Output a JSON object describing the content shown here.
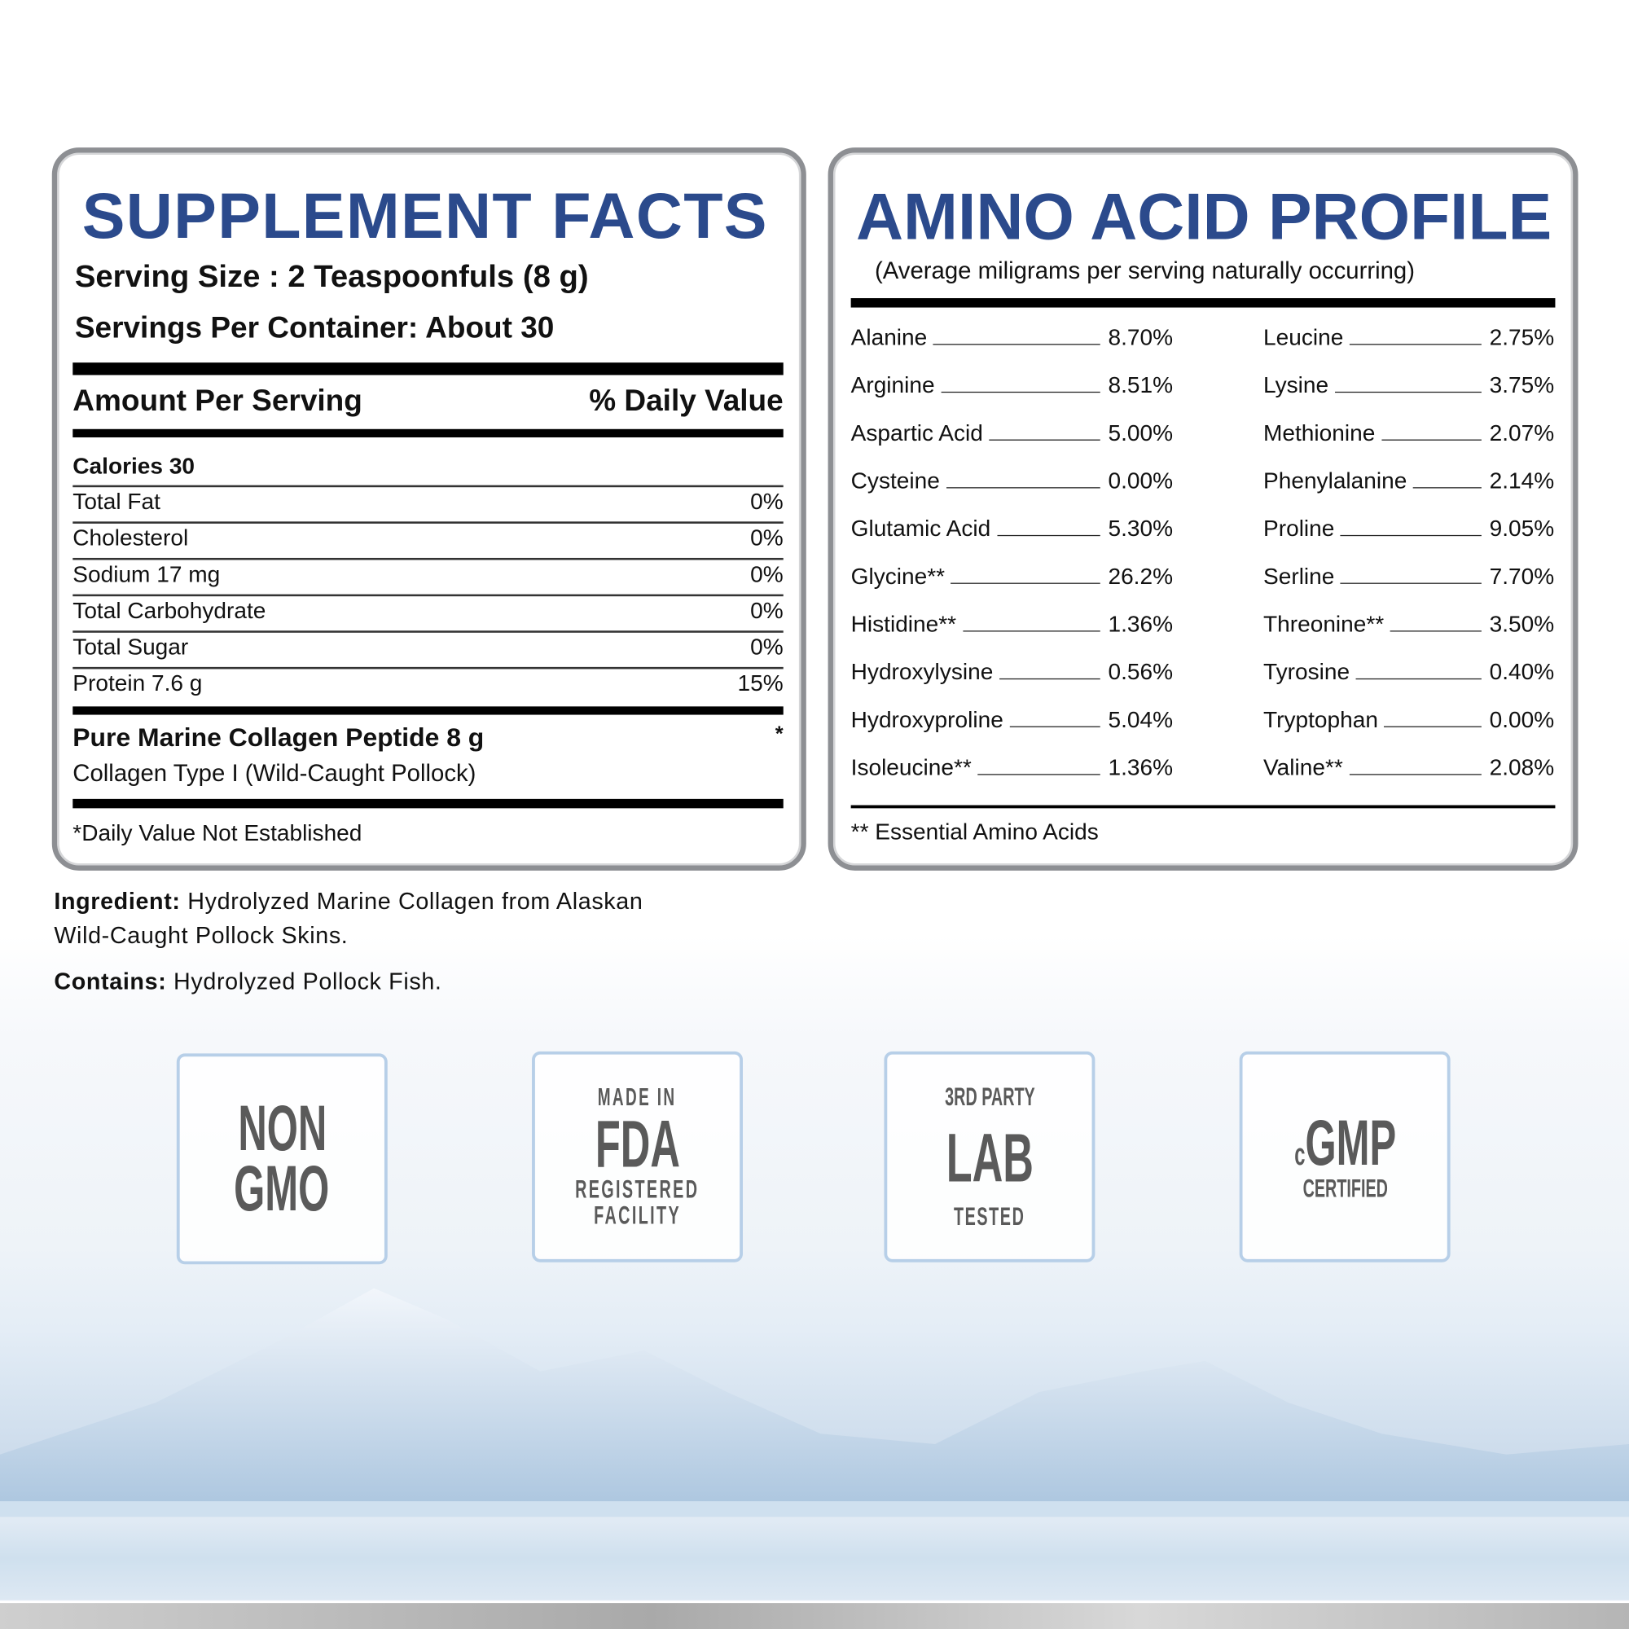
{
  "supplement_facts": {
    "title": "SUPPLEMENT FACTS",
    "serving_size": "Serving Size : 2 Teaspoonfuls (8 g)",
    "servings_per_container": "Servings Per Container: About 30",
    "amount_header": "Amount Per Serving",
    "dv_header": "% Daily Value",
    "calories": "Calories 30",
    "rows": [
      {
        "name": "Total Fat",
        "dv": "0%"
      },
      {
        "name": "Cholesterol",
        "dv": "0%"
      },
      {
        "name": "Sodium 17 mg",
        "dv": "0%"
      },
      {
        "name": "Total Carbohydrate",
        "dv": "0%"
      },
      {
        "name": "Total Sugar",
        "dv": "0%"
      },
      {
        "name": "Protein 7.6 g",
        "dv": "15%"
      }
    ],
    "collagen": "Pure Marine Collagen Peptide 8 g",
    "collagen_dv": "*",
    "collagen_type": "Collagen Type I (Wild-Caught Pollock)",
    "footnote": "*Daily Value Not Established"
  },
  "amino_profile": {
    "title": "AMINO ACID PROFILE",
    "subtitle": "(Average miligrams per serving naturally occurring)",
    "left": [
      {
        "name": "Alanine",
        "value": "8.70%"
      },
      {
        "name": "Arginine",
        "value": "8.51%"
      },
      {
        "name": "Aspartic Acid",
        "value": "5.00%"
      },
      {
        "name": "Cysteine",
        "value": "0.00%"
      },
      {
        "name": "Glutamic Acid",
        "value": "5.30%"
      },
      {
        "name": "Glycine**",
        "value": "26.2%"
      },
      {
        "name": "Histidine**",
        "value": "1.36%"
      },
      {
        "name": "Hydroxylysine",
        "value": "0.56%"
      },
      {
        "name": "Hydroxyproline",
        "value": "5.04%"
      },
      {
        "name": "Isoleucine**",
        "value": "1.36%"
      }
    ],
    "right": [
      {
        "name": "Leucine",
        "value": "2.75%"
      },
      {
        "name": "Lysine",
        "value": "3.75%"
      },
      {
        "name": "Methionine",
        "value": "2.07%"
      },
      {
        "name": "Phenylalanine",
        "value": "2.14%"
      },
      {
        "name": "Proline",
        "value": "9.05%"
      },
      {
        "name": "Serline",
        "value": "7.70%"
      },
      {
        "name": "Threonine**",
        "value": "3.50%"
      },
      {
        "name": "Tyrosine",
        "value": "0.40%"
      },
      {
        "name": "Tryptophan",
        "value": "0.00%"
      },
      {
        "name": "Valine**",
        "value": "2.08%"
      }
    ],
    "footnote": "** Essential Amino Acids"
  },
  "ingredients": {
    "ingredient_label": "Ingredient:",
    "ingredient_text_1": "Hydrolyzed Marine Collagen from Alaskan",
    "ingredient_text_2": "Wild-Caught Pollock Skins.",
    "contains_label": "Contains:",
    "contains_text": "Hydrolyzed Pollock Fish."
  },
  "badges": {
    "non_gmo": {
      "line1": "NON",
      "line2": "GMO"
    },
    "fda": {
      "top": "MADE IN",
      "main": "FDA",
      "line3": "REGISTERED",
      "line4": "FACILITY"
    },
    "lab": {
      "top": "3RD PARTY",
      "main": "LAB",
      "bottom": "TESTED"
    },
    "cgmp": {
      "prefix": "c",
      "main": "GMP",
      "bottom": "CERTIFIED"
    }
  },
  "colors": {
    "title_blue": "#2b4a8c",
    "badge_border": "#b7cfe8",
    "badge_text": "#5a5a5a"
  }
}
